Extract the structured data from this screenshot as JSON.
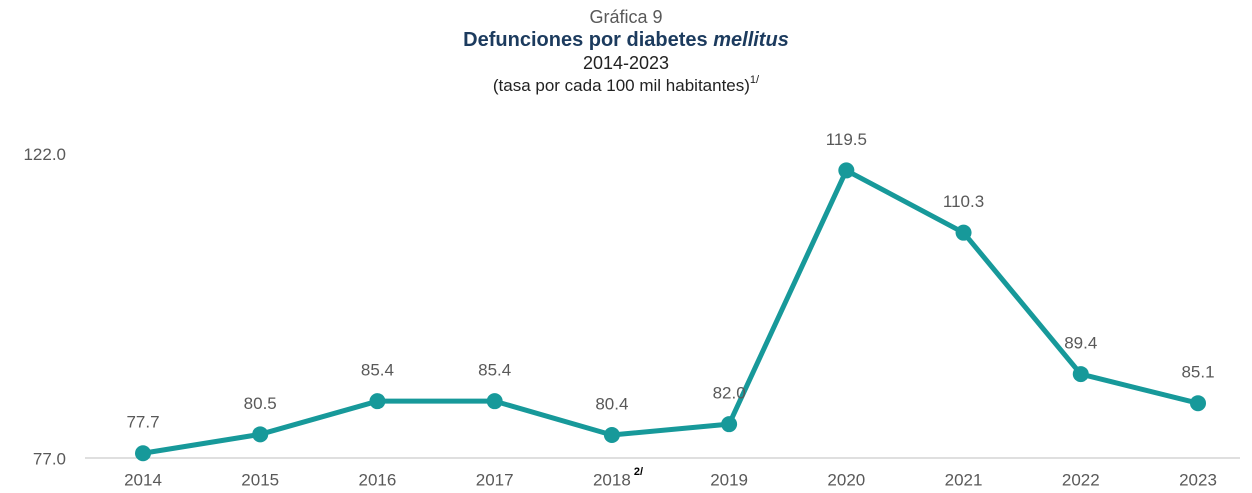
{
  "chart_data": {
    "type": "line",
    "chart_label": "Gráfica 9",
    "title": "Defunciones por diabetes",
    "title_emphasis": "mellitus",
    "subtitle": "2014-2023",
    "unit": "(tasa por cada 100 mil habitantes)",
    "unit_note": "1/",
    "categories": [
      "2014",
      "2015",
      "2016",
      "2017",
      "2018",
      "2019",
      "2020",
      "2021",
      "2022",
      "2023"
    ],
    "category_notes": [
      null,
      null,
      null,
      null,
      "2/",
      null,
      null,
      null,
      null,
      null
    ],
    "series": [
      {
        "name": null,
        "color": "#17999a",
        "values": [
          77.7,
          80.5,
          85.4,
          85.4,
          80.4,
          82.0,
          119.5,
          110.3,
          89.4,
          85.1
        ],
        "value_labels": [
          "77.7",
          "80.5",
          "85.4",
          "85.4",
          "80.4",
          "82.0",
          "119.5",
          "110.3",
          "89.4",
          "85.1"
        ]
      }
    ],
    "ylim": [
      77,
      122
    ],
    "yticks": [
      {
        "value": 77,
        "label": "77.0"
      },
      {
        "value": 122,
        "label": "122.0"
      }
    ],
    "grid": false
  }
}
